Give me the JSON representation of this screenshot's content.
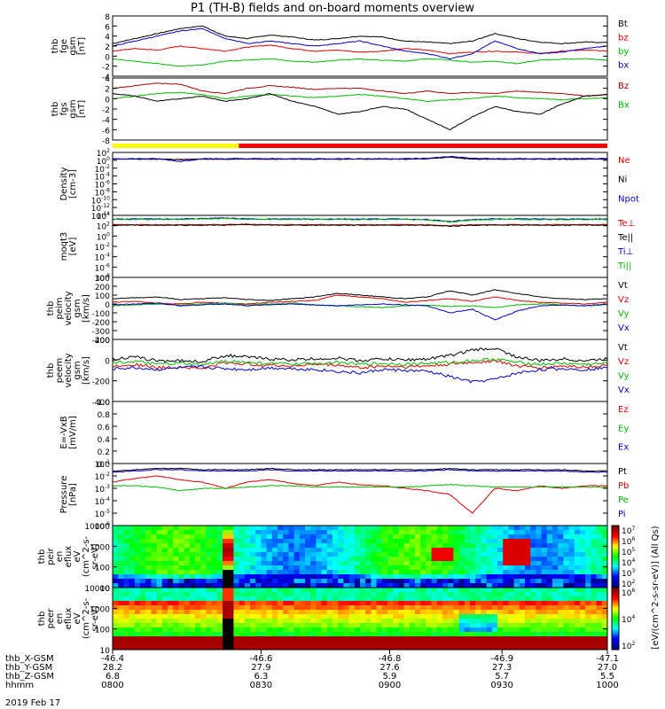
{
  "chart_data": {
    "type": "line",
    "title": "P1 (TH-B) fields and on-board moments overview",
    "panels": [
      {
        "ylabel": [
          "thb",
          "fge",
          "gsm",
          "[nT]"
        ],
        "yticks": [
          "8",
          "6",
          "4",
          "2",
          "0",
          "-2",
          "-4"
        ],
        "ylim": [
          -4,
          8
        ],
        "series": [
          {
            "name": "Bt",
            "color": "#000000",
            "values": [
              2.5,
              3.5,
              4.5,
              5.5,
              6.0,
              4.0,
              3.5,
              4.2,
              3.8,
              3.2,
              3.5,
              4.0,
              3.8,
              3.0,
              2.8,
              2.5,
              3.0,
              4.5,
              3.5,
              2.8,
              2.5,
              2.8,
              2.7
            ]
          },
          {
            "name": "bz",
            "color": "#dd0000",
            "values": [
              1.0,
              1.5,
              1.2,
              2.0,
              1.5,
              1.0,
              1.8,
              2.2,
              1.5,
              1.0,
              1.2,
              0.8,
              1.0,
              1.5,
              1.2,
              0.5,
              0.8,
              1.0,
              0.8,
              0.5,
              1.0,
              1.2,
              1.0
            ]
          },
          {
            "name": "by",
            "color": "#00bb00",
            "values": [
              -0.5,
              -1.0,
              -1.5,
              -2.0,
              -1.8,
              -1.0,
              -0.8,
              -0.5,
              -1.0,
              -1.2,
              -0.8,
              -0.6,
              -0.8,
              -1.0,
              -0.5,
              -0.8,
              -1.2,
              -1.0,
              -1.5,
              -0.8,
              -0.6,
              -0.5,
              -0.8
            ]
          },
          {
            "name": "bx",
            "color": "#0000cc",
            "values": [
              2.0,
              3.0,
              4.0,
              5.0,
              5.5,
              3.5,
              2.5,
              3.0,
              2.5,
              2.0,
              2.5,
              3.0,
              2.0,
              1.0,
              0.5,
              -0.5,
              0.5,
              3.0,
              1.5,
              0.5,
              0.8,
              1.5,
              2.0
            ]
          }
        ]
      },
      {
        "ylabel": [
          "thb",
          "fgs",
          "gsm",
          "[nT]"
        ],
        "yticks": [
          "4",
          "2",
          "0",
          "-2",
          "-4",
          "-6",
          "-8"
        ],
        "ylim": [
          -8,
          4
        ],
        "series": [
          {
            "name": "Bz",
            "color": "#aa0000",
            "values": [
              2.0,
              2.5,
              3.0,
              2.8,
              1.5,
              1.0,
              2.0,
              2.5,
              2.2,
              1.8,
              2.0,
              2.0,
              1.5,
              1.0,
              1.5,
              1.0,
              1.2,
              1.0,
              1.5,
              1.2,
              1.0,
              0.5,
              0.8
            ]
          },
          {
            "name": "Bx",
            "color": "#00bb00",
            "values": [
              0.0,
              0.5,
              1.0,
              1.2,
              0.8,
              0.0,
              0.5,
              0.8,
              0.5,
              0.2,
              0.5,
              0.8,
              0.5,
              0.0,
              -0.5,
              -0.2,
              0.0,
              0.5,
              0.2,
              0.0,
              -0.2,
              0.0,
              0.2
            ]
          },
          {
            "name": "",
            "color": "#000000",
            "values": [
              1.0,
              0.5,
              -0.5,
              0.0,
              0.5,
              -0.5,
              0.0,
              1.0,
              -0.5,
              -1.5,
              -3.0,
              -2.5,
              -1.5,
              -2.0,
              -4.0,
              -6.0,
              -3.5,
              -1.5,
              -2.5,
              -3.0,
              -1.0,
              0.5,
              0.8
            ]
          }
        ]
      },
      {
        "ylabel": [
          "Density",
          "[cm-3]"
        ],
        "yticks": [
          "10^2",
          "10^0",
          "10^-2",
          "10^-4",
          "10^-6",
          "10^-8",
          "10^-10",
          "10^-12",
          "10^-14"
        ],
        "ylim": [
          -14,
          2
        ],
        "log": true,
        "series": [
          {
            "name": "Ne",
            "color": "#dd0000",
            "values": [
              0.3,
              0.3,
              0.3,
              0.2,
              0.3,
              0.3,
              0.3,
              0.3,
              0.3,
              0.3,
              0.3,
              0.3,
              0.3,
              0.3,
              0.4,
              0.8,
              0.3,
              0.3,
              0.3,
              0.3,
              0.3,
              0.3,
              0.3
            ]
          },
          {
            "name": "Ni",
            "color": "#000000",
            "values": [
              0.3,
              0.3,
              0.3,
              0.2,
              0.3,
              0.3,
              0.3,
              0.3,
              0.3,
              0.3,
              0.3,
              0.3,
              0.3,
              0.3,
              0.4,
              0.8,
              0.3,
              0.3,
              0.3,
              0.3,
              0.3,
              0.3,
              0.3
            ]
          },
          {
            "name": "Npot",
            "color": "#0000cc",
            "values": [
              0.4,
              0.4,
              0.4,
              -0.3,
              0.4,
              0.4,
              0.4,
              0.4,
              0.4,
              0.4,
              0.4,
              0.4,
              0.4,
              0.4,
              0.5,
              1.0,
              0.5,
              0.4,
              0.4,
              0.4,
              0.4,
              0.4,
              0.4
            ]
          }
        ]
      },
      {
        "ylabel": [
          "moqt3",
          "[eV]"
        ],
        "yticks": [
          "10^4",
          "10^2",
          "10^0",
          "10^-2",
          "10^-4",
          "10^-6",
          "10^-8"
        ],
        "ylim": [
          -8,
          4
        ],
        "log": true,
        "series": [
          {
            "name": "Te⊥",
            "color": "#dd0000",
            "values": [
              2.2,
              2.2,
              2.2,
              2.2,
              2.2,
              2.2,
              2.3,
              2.2,
              2.2,
              2.2,
              2.2,
              2.2,
              2.2,
              2.2,
              2.2,
              2.0,
              2.2,
              2.2,
              2.2,
              2.2,
              2.2,
              2.2,
              2.2
            ]
          },
          {
            "name": "Te||",
            "color": "#000000",
            "values": [
              2.1,
              2.1,
              2.1,
              2.1,
              2.1,
              2.1,
              2.2,
              2.1,
              2.1,
              2.1,
              2.1,
              2.1,
              2.1,
              2.1,
              2.1,
              1.9,
              2.1,
              2.1,
              2.1,
              2.1,
              2.1,
              2.1,
              2.1
            ]
          },
          {
            "name": "Ti⊥",
            "color": "#0000cc",
            "values": [
              3.3,
              3.3,
              3.3,
              3.3,
              3.4,
              3.5,
              3.3,
              3.3,
              3.3,
              3.3,
              3.3,
              3.3,
              3.3,
              3.3,
              3.2,
              2.8,
              3.2,
              3.3,
              3.3,
              3.3,
              3.3,
              3.3,
              3.3
            ]
          },
          {
            "name": "Ti||",
            "color": "#00bb00",
            "values": [
              3.2,
              3.2,
              3.2,
              3.2,
              3.3,
              3.4,
              3.2,
              3.2,
              3.2,
              3.2,
              3.2,
              3.2,
              3.2,
              3.2,
              3.1,
              2.7,
              3.1,
              3.2,
              3.2,
              3.2,
              3.2,
              3.2,
              3.2
            ]
          }
        ]
      },
      {
        "ylabel": [
          "thb",
          "peim",
          "velocity",
          "gsm",
          "[km/s]"
        ],
        "yticks": [
          "300",
          "200",
          "100",
          "0",
          "-100",
          "-200",
          "-300",
          "-400"
        ],
        "ylim": [
          -400,
          300
        ],
        "series": [
          {
            "name": "Vt",
            "color": "#000000",
            "values": [
              60,
              70,
              80,
              50,
              60,
              70,
              50,
              40,
              60,
              80,
              120,
              100,
              80,
              60,
              80,
              150,
              100,
              160,
              120,
              80,
              60,
              50,
              60
            ]
          },
          {
            "name": "Vz",
            "color": "#dd0000",
            "values": [
              20,
              30,
              10,
              0,
              20,
              10,
              0,
              20,
              30,
              40,
              100,
              80,
              60,
              20,
              40,
              60,
              30,
              80,
              40,
              20,
              10,
              0,
              20
            ]
          },
          {
            "name": "Vy",
            "color": "#00bb00",
            "values": [
              -20,
              -10,
              0,
              -10,
              0,
              10,
              -10,
              0,
              10,
              -10,
              -20,
              -30,
              -40,
              -20,
              -10,
              -30,
              -20,
              -40,
              -10,
              0,
              -10,
              -20,
              -10
            ]
          },
          {
            "name": "Vx",
            "color": "#0000cc",
            "values": [
              -10,
              0,
              10,
              -20,
              -10,
              0,
              -20,
              -10,
              0,
              -10,
              -20,
              -10,
              0,
              -10,
              -20,
              -100,
              -60,
              -180,
              -80,
              -20,
              -10,
              -20,
              0
            ]
          }
        ]
      },
      {
        "ylabel": [
          "thb",
          "peem",
          "velocity",
          "gsm",
          "[km/s]"
        ],
        "yticks": [
          "200",
          "0",
          "-200",
          "-400"
        ],
        "ylim": [
          -400,
          300
        ],
        "series": [
          {
            "name": "Vt",
            "color": "#000000",
            "values": [
              80,
              100,
              60,
              60,
              50,
              120,
              100,
              80,
              70,
              80,
              90,
              60,
              80,
              70,
              80,
              120,
              180,
              200,
              100,
              60,
              80,
              60,
              80
            ]
          },
          {
            "name": "Vz",
            "color": "#dd0000",
            "values": [
              0,
              20,
              -20,
              -10,
              -30,
              40,
              20,
              10,
              0,
              20,
              10,
              -20,
              0,
              -10,
              0,
              20,
              40,
              60,
              0,
              -20,
              0,
              -10,
              10
            ]
          },
          {
            "name": "Vy",
            "color": "#00bb00",
            "values": [
              40,
              50,
              20,
              30,
              10,
              60,
              40,
              30,
              20,
              30,
              40,
              20,
              30,
              20,
              30,
              40,
              60,
              80,
              40,
              20,
              30,
              20,
              30
            ]
          },
          {
            "name": "Vx",
            "color": "#0000cc",
            "values": [
              -30,
              -20,
              -40,
              -20,
              -10,
              -30,
              -40,
              -20,
              -30,
              -40,
              -60,
              -80,
              -40,
              -50,
              -60,
              -120,
              -180,
              -150,
              -80,
              -40,
              -30,
              -40,
              -20
            ]
          }
        ]
      },
      {
        "ylabel": [
          "E=-VxB",
          "[mV/m]"
        ],
        "yticks": [
          "1.0",
          "0.8",
          "0.6",
          "0.4",
          "0.2",
          "0.0"
        ],
        "ylim": [
          0,
          1
        ],
        "series": [
          {
            "name": "Ez",
            "color": "#dd0000",
            "values": []
          },
          {
            "name": "Ey",
            "color": "#00bb00",
            "values": []
          },
          {
            "name": "Ex",
            "color": "#0000cc",
            "values": []
          }
        ]
      },
      {
        "ylabel": [
          "Pressure",
          "[nPa]"
        ],
        "yticks": [
          "10^-1",
          "10^-2",
          "10^-3",
          "10^-4",
          "10^-5",
          "10^-6"
        ],
        "ylim": [
          -6,
          -1
        ],
        "log": true,
        "series": [
          {
            "name": "Pt",
            "color": "#000000",
            "values": [
              -1.6,
              -1.5,
              -1.4,
              -1.4,
              -1.5,
              -1.5,
              -1.5,
              -1.4,
              -1.5,
              -1.5,
              -1.5,
              -1.5,
              -1.5,
              -1.5,
              -1.5,
              -1.4,
              -1.5,
              -1.5,
              -1.5,
              -1.5,
              -1.5,
              -1.6,
              -1.6
            ]
          },
          {
            "name": "Pb",
            "color": "#dd0000",
            "values": [
              -2.5,
              -2.2,
              -2.0,
              -2.3,
              -2.5,
              -3.0,
              -2.5,
              -2.3,
              -2.6,
              -2.8,
              -2.5,
              -2.7,
              -2.8,
              -3.0,
              -3.2,
              -3.5,
              -5.0,
              -3.0,
              -3.2,
              -2.8,
              -3.0,
              -2.8,
              -2.8
            ]
          },
          {
            "name": "Pe",
            "color": "#00bb00",
            "values": [
              -2.8,
              -2.8,
              -2.9,
              -3.2,
              -3.0,
              -3.0,
              -2.9,
              -2.8,
              -2.8,
              -2.9,
              -2.9,
              -2.9,
              -2.9,
              -2.9,
              -2.8,
              -2.7,
              -2.8,
              -2.9,
              -2.9,
              -2.9,
              -2.9,
              -2.9,
              -2.9
            ]
          },
          {
            "name": "Pi",
            "color": "#0000cc",
            "values": [
              -1.7,
              -1.6,
              -1.5,
              -1.5,
              -1.6,
              -1.6,
              -1.6,
              -1.5,
              -1.6,
              -1.6,
              -1.6,
              -1.6,
              -1.6,
              -1.6,
              -1.6,
              -1.5,
              -1.6,
              -1.6,
              -1.6,
              -1.6,
              -1.6,
              -1.7,
              -1.7
            ]
          }
        ]
      },
      {
        "type": "heatmap",
        "ylabel": [
          "thb",
          "peir",
          "en",
          "eflux",
          "eV",
          "(cm^2-s-",
          "sr-eV)"
        ],
        "yticks": [
          "10000",
          "1000",
          "100",
          "10"
        ]
      },
      {
        "type": "heatmap",
        "ylabel": [
          "thb",
          "peer",
          "en",
          "eflux",
          "eV",
          "(cm^2-s-",
          "sr-eV)"
        ],
        "yticks": [
          "10000",
          "1000",
          "100",
          "10"
        ]
      }
    ],
    "mode_bar": [
      {
        "color": "#ffff00",
        "from": 0,
        "to": 0.255
      },
      {
        "color": "#ff0000",
        "from": 0.255,
        "to": 1
      }
    ],
    "colorbars": [
      {
        "ticks": [
          "10^7",
          "10^6",
          "10^5",
          "10^4",
          "10^3",
          "10^2"
        ],
        "label": "[eV/(cm^2-s-sr-eV)] (All Qs)"
      },
      {
        "ticks": [
          "10^6",
          "10^4",
          "10^2"
        ],
        "label": ""
      }
    ],
    "x_labels": {
      "rows": [
        {
          "name": "thb_X-GSM",
          "values": [
            "-46.4",
            "-46.6",
            "-46.8",
            "-46.9",
            "-47.1"
          ]
        },
        {
          "name": "thb_Y-GSM",
          "values": [
            "28.2",
            "27.9",
            "27.6",
            "27.3",
            "27.0"
          ]
        },
        {
          "name": "thb_Z-GSM",
          "values": [
            "6.8",
            "6.3",
            "5.9",
            "5.7",
            "5.5"
          ]
        },
        {
          "name": "hhmm",
          "values": [
            "0800",
            "0830",
            "0900",
            "0930",
            "1000"
          ]
        }
      ],
      "date": "2019 Feb 17"
    }
  }
}
